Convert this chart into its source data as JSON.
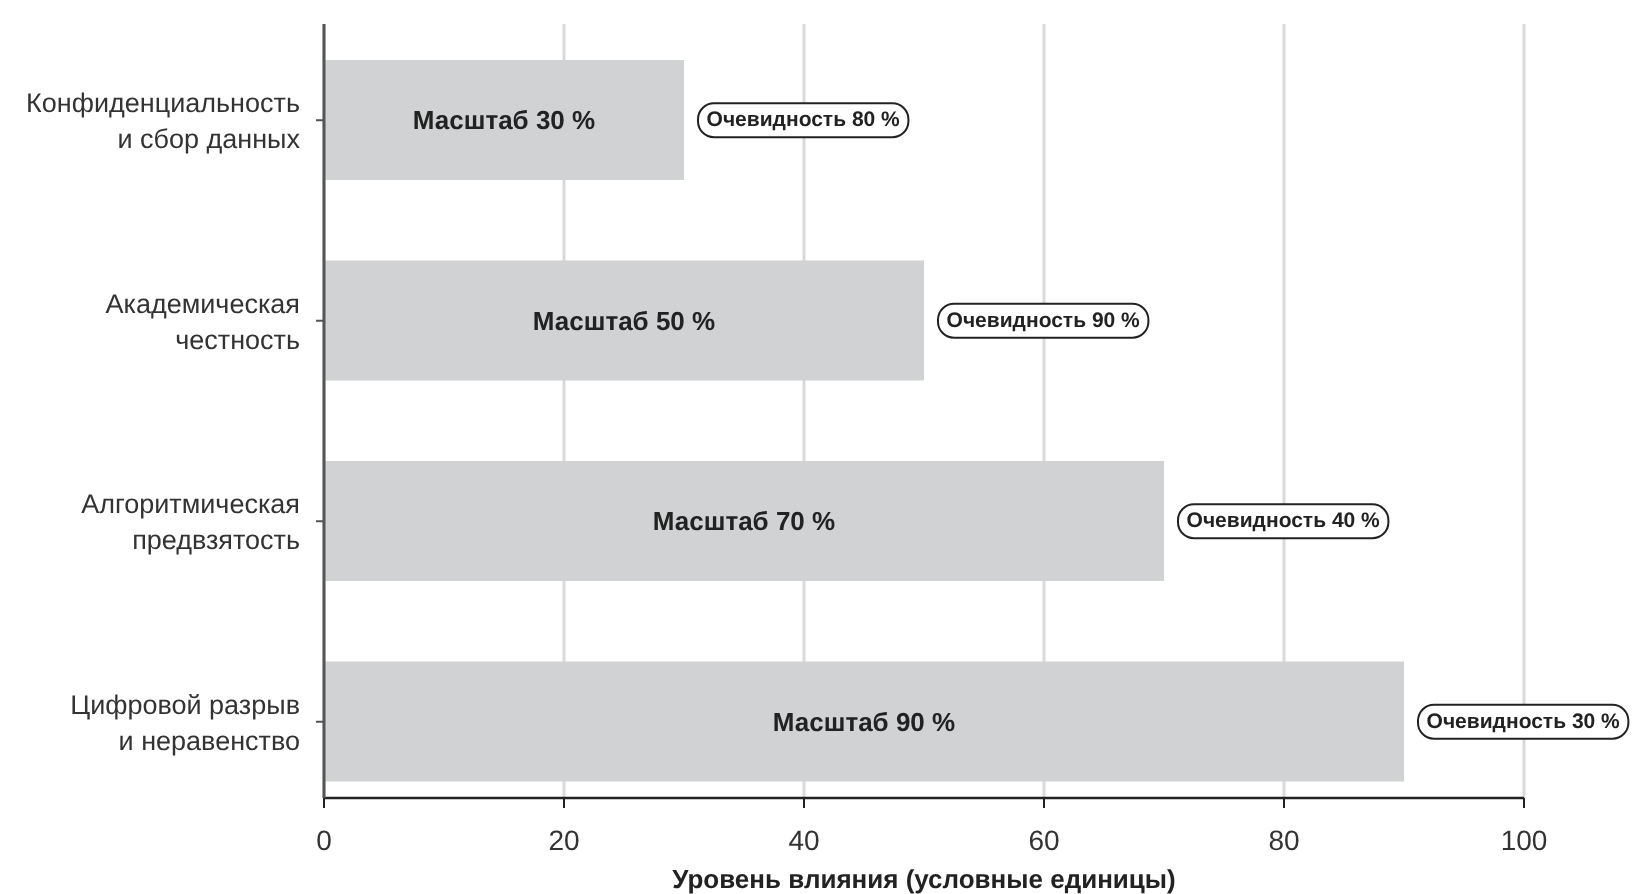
{
  "chart_data": {
    "type": "bar",
    "orientation": "horizontal",
    "xlabel": "Уровень влияния (условные единицы)",
    "categories": [
      "Конфиденциальность и сбор данных",
      "Академическая честность",
      "Алгоритмическая предвзятость",
      "Цифровой разрыв и неравенство"
    ],
    "values": [
      30,
      50,
      70,
      90
    ],
    "color": "#d1d2d4",
    "value_labels": [
      "Масштаб 30 %",
      "Масштаб 50 %",
      "Масштаб 70 %",
      "Масштаб 90 %"
    ],
    "xlim": [
      0,
      100
    ],
    "xticks": [
      0,
      20,
      40,
      60,
      80,
      100
    ],
    "grid": "x",
    "annotations": [
      {
        "text": "Очевидность 80 %",
        "x": 30,
        "y": "Конфиденциальность и сбор данных"
      },
      {
        "text": "Очевидность 90 %",
        "x": 50,
        "y": "Академическая честность"
      },
      {
        "text": "Очевидность 40 %",
        "x": 70,
        "y": "Алгоритмическая предвзятость"
      },
      {
        "text": "Очевидность 30 %",
        "x": 90,
        "y": "Цифровой разрыв и неравенство"
      }
    ]
  }
}
